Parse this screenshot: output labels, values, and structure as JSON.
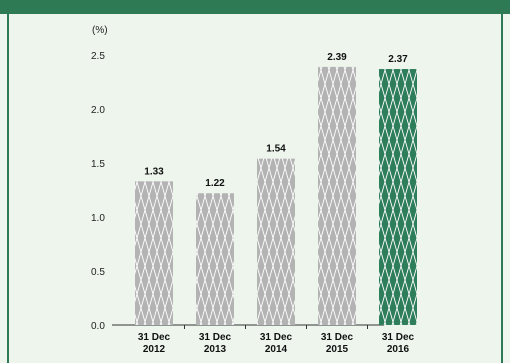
{
  "chart_data": {
    "type": "bar",
    "unit_label": "(%)",
    "categories": [
      [
        "31 Dec",
        "2012"
      ],
      [
        "31 Dec",
        "2013"
      ],
      [
        "31 Dec",
        "2014"
      ],
      [
        "31 Dec",
        "2015"
      ],
      [
        "31 Dec",
        "2016"
      ]
    ],
    "values": [
      1.33,
      1.22,
      1.54,
      2.39,
      2.37
    ],
    "value_labels": [
      "1.33",
      "1.22",
      "1.54",
      "2.39",
      "2.37"
    ],
    "yticks": [
      "0.0",
      "0.5",
      "1.0",
      "1.5",
      "2.0",
      "2.5"
    ],
    "ylim": [
      0,
      2.5
    ],
    "grid": false,
    "colors": {
      "bar_default": "#b3b3b3",
      "bar_highlight": "#2e7d5b",
      "pattern_line": "#ffffff",
      "frame_accent": "#2d7a55",
      "panel_background": "#edf5ed"
    },
    "highlight_index": 4
  }
}
